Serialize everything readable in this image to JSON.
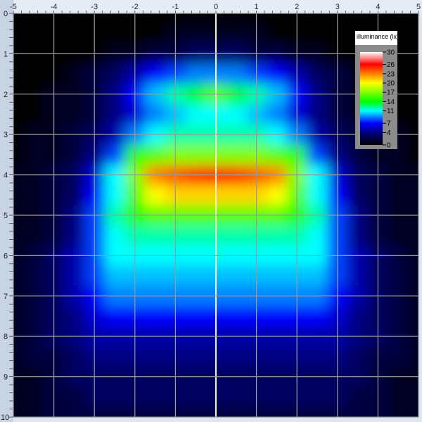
{
  "chart_data": {
    "type": "heatmap",
    "title": "",
    "xlabel": "",
    "ylabel": "",
    "xlim": [
      -5,
      5
    ],
    "ylim": [
      0,
      10
    ],
    "y_axis_inverted": true,
    "grid": true,
    "x_ticks": [
      "-5",
      "-4",
      "-3",
      "-2",
      "-1",
      "0",
      "1",
      "2",
      "3",
      "4",
      "5"
    ],
    "y_ticks": [
      "0",
      "1",
      "2",
      "3",
      "4",
      "5",
      "6",
      "7",
      "8",
      "9",
      "10"
    ],
    "x": [
      -5,
      -4.5,
      -4,
      -3.5,
      -3,
      -2.5,
      -2,
      -1.5,
      -1,
      -0.5,
      0,
      0.5,
      1,
      1.5,
      2,
      2.5,
      3,
      3.5,
      4,
      4.5,
      5
    ],
    "y": [
      0,
      0.5,
      1,
      1.5,
      2,
      2.5,
      3,
      3.5,
      4,
      4.5,
      5,
      5.5,
      6,
      6.5,
      7,
      7.5,
      8,
      8.5,
      9,
      9.5,
      10
    ],
    "values": [
      [
        0,
        0,
        0,
        0,
        0,
        0,
        0,
        0,
        0,
        0,
        0,
        0,
        0,
        0,
        0,
        0,
        0,
        0,
        0,
        0,
        0
      ],
      [
        0,
        0,
        0,
        0,
        0,
        0,
        0,
        0,
        1,
        1,
        1,
        1,
        1,
        0,
        0,
        0,
        0,
        0,
        0,
        0,
        0
      ],
      [
        0,
        0,
        0,
        0,
        0,
        1,
        1,
        2,
        2,
        3,
        3,
        3,
        2,
        2,
        1,
        1,
        0,
        0,
        0,
        0,
        0
      ],
      [
        0,
        0,
        0,
        1,
        2,
        3,
        5,
        7,
        8,
        9,
        9,
        9,
        8,
        7,
        5,
        3,
        2,
        1,
        0,
        0,
        0
      ],
      [
        0,
        0,
        1,
        1,
        2,
        4,
        7,
        10,
        12,
        14,
        16,
        14,
        12,
        10,
        7,
        4,
        2,
        1,
        1,
        0,
        0
      ],
      [
        0,
        0,
        1,
        1,
        2,
        4,
        6,
        9,
        10,
        11,
        11,
        11,
        10,
        9,
        6,
        4,
        2,
        1,
        1,
        0,
        0
      ],
      [
        0,
        1,
        1,
        2,
        3,
        5,
        9,
        11,
        12,
        12,
        12,
        12,
        12,
        11,
        9,
        5,
        3,
        2,
        1,
        1,
        0
      ],
      [
        0,
        1,
        1,
        2,
        4,
        8,
        15,
        16,
        17,
        17,
        17,
        17,
        17,
        16,
        15,
        8,
        4,
        2,
        1,
        1,
        0
      ],
      [
        1,
        1,
        2,
        3,
        6,
        11,
        17,
        23,
        24,
        25,
        26,
        25,
        24,
        23,
        17,
        11,
        6,
        3,
        2,
        1,
        1
      ],
      [
        1,
        1,
        2,
        3,
        7,
        11,
        16,
        20,
        21,
        21,
        21,
        21,
        21,
        20,
        16,
        11,
        7,
        3,
        2,
        1,
        1
      ],
      [
        1,
        1,
        2,
        4,
        8,
        12,
        15,
        16,
        16,
        16,
        16,
        16,
        16,
        16,
        15,
        12,
        8,
        4,
        2,
        1,
        1
      ],
      [
        1,
        1,
        2,
        4,
        8,
        11,
        12,
        12,
        12,
        12,
        12,
        12,
        12,
        12,
        12,
        11,
        8,
        4,
        2,
        1,
        1
      ],
      [
        1,
        2,
        3,
        5,
        8,
        11,
        11,
        11,
        11,
        11,
        11,
        11,
        11,
        11,
        11,
        11,
        8,
        5,
        3,
        2,
        1
      ],
      [
        1,
        2,
        3,
        5,
        8,
        10,
        10,
        10,
        10,
        10,
        10,
        10,
        10,
        10,
        10,
        10,
        8,
        5,
        3,
        2,
        1
      ],
      [
        1,
        2,
        3,
        5,
        7,
        9,
        9,
        9,
        9,
        9,
        9,
        9,
        9,
        9,
        9,
        9,
        7,
        5,
        3,
        2,
        1
      ],
      [
        1,
        2,
        3,
        4,
        6,
        7,
        7,
        7,
        7,
        7,
        7,
        7,
        7,
        7,
        7,
        7,
        6,
        4,
        3,
        2,
        1
      ],
      [
        1,
        2,
        3,
        4,
        5,
        5,
        5,
        5,
        5,
        5,
        5,
        5,
        5,
        5,
        5,
        5,
        5,
        4,
        3,
        2,
        1
      ],
      [
        1,
        2,
        2,
        3,
        4,
        4,
        4,
        4,
        4,
        4,
        4,
        4,
        4,
        4,
        4,
        4,
        4,
        3,
        2,
        2,
        1
      ],
      [
        1,
        1,
        2,
        3,
        3,
        3,
        3,
        3,
        3,
        3,
        3,
        3,
        3,
        3,
        3,
        3,
        3,
        3,
        2,
        1,
        1
      ],
      [
        1,
        1,
        2,
        2,
        3,
        3,
        3,
        3,
        3,
        3,
        3,
        3,
        3,
        3,
        3,
        3,
        3,
        2,
        2,
        1,
        1
      ],
      [
        1,
        1,
        2,
        2,
        2,
        2,
        2,
        2,
        2,
        2,
        2,
        2,
        2,
        2,
        2,
        2,
        2,
        2,
        2,
        1,
        1
      ]
    ],
    "legend": {
      "title": "illuminance (lx)",
      "placement": "top-right",
      "range": [
        0,
        30
      ],
      "ticks": [
        "30",
        "26",
        "23",
        "20",
        "17",
        "14",
        "11",
        "7",
        "4",
        "0"
      ]
    },
    "colorscale": [
      {
        "value": 0,
        "color": "#000000"
      },
      {
        "value": 4,
        "color": "#000080"
      },
      {
        "value": 7,
        "color": "#0000ff"
      },
      {
        "value": 11,
        "color": "#00ffff"
      },
      {
        "value": 14,
        "color": "#00ff00"
      },
      {
        "value": 17,
        "color": "#80ff00"
      },
      {
        "value": 20,
        "color": "#ffff00"
      },
      {
        "value": 23,
        "color": "#ff8000"
      },
      {
        "value": 26,
        "color": "#ff0000"
      },
      {
        "value": 30,
        "color": "#ffffff"
      }
    ]
  }
}
